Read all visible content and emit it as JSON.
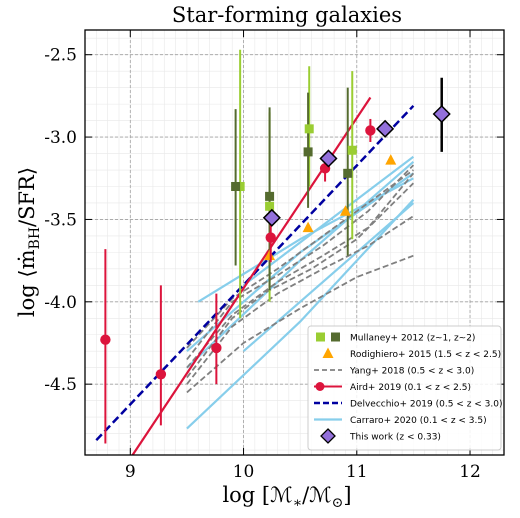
{
  "chart_data": {
    "type": "scatter",
    "title": "Star-forming galaxies",
    "xlabel": "log [ℳ*/ℳ⊙]",
    "ylabel": "log ⟨ṁBH/SFR⟩",
    "xlim": [
      8.6,
      12.3
    ],
    "ylim": [
      -4.93,
      -2.35
    ],
    "xticks": [
      9,
      10,
      11,
      12
    ],
    "yticks": [
      -2.5,
      -3.0,
      -3.5,
      -4.0,
      -4.5
    ],
    "ytick_labels": [
      "-2.5",
      "-3.0",
      "-3.5",
      "-4.0",
      "-4.5"
    ],
    "xtick_labels": [
      "9",
      "10",
      "11",
      "12"
    ],
    "grid": true,
    "legend_position": "lower-right",
    "series": [
      {
        "name": "Mullaney+ 2012 (z∼1, z∼2)",
        "marker": "square",
        "colors": [
          "#9acd32",
          "#556b2f"
        ],
        "points_z1": [
          {
            "x": 9.97,
            "y": -3.3,
            "ylo": -4.1,
            "yhi": -2.47
          },
          {
            "x": 10.23,
            "y": -3.42,
            "ylo": -4.0,
            "yhi": -2.85
          },
          {
            "x": 10.58,
            "y": -2.95,
            "ylo": -3.3,
            "yhi": -2.57
          },
          {
            "x": 10.96,
            "y": -3.08,
            "ylo": -3.62,
            "yhi": -2.6
          }
        ],
        "points_z2": [
          {
            "x": 9.93,
            "y": -3.3,
            "ylo": -3.78,
            "yhi": -2.83
          },
          {
            "x": 10.23,
            "y": -3.36,
            "ylo": -3.93,
            "yhi": -2.82
          },
          {
            "x": 10.57,
            "y": -3.09,
            "ylo": -3.43,
            "yhi": -2.73
          },
          {
            "x": 10.92,
            "y": -3.22,
            "ylo": -3.72,
            "yhi": -2.7
          }
        ]
      },
      {
        "name": "Rodighiero+ 2015 (1.5 < z < 2.5)",
        "marker": "triangle",
        "color": "#ffa500",
        "points": [
          {
            "x": 10.23,
            "y": -3.72
          },
          {
            "x": 10.57,
            "y": -3.55
          },
          {
            "x": 10.9,
            "y": -3.45
          },
          {
            "x": 11.3,
            "y": -3.14
          }
        ]
      },
      {
        "name": "Yang+ 2018 (0.5 < z < 3.0)",
        "line": "dashed",
        "color": "#808080",
        "lines": [
          [
            [
              9.5,
              -4.46
            ],
            [
              9.9,
              -4.1
            ],
            [
              10.2,
              -3.94
            ],
            [
              10.6,
              -3.8
            ],
            [
              11.0,
              -3.62
            ],
            [
              11.5,
              -3.28
            ]
          ],
          [
            [
              9.5,
              -4.4
            ],
            [
              9.9,
              -4.08
            ],
            [
              10.3,
              -3.88
            ],
            [
              10.7,
              -3.72
            ],
            [
              11.1,
              -3.55
            ],
            [
              11.5,
              -3.22
            ]
          ],
          [
            [
              9.5,
              -4.5
            ],
            [
              9.9,
              -4.15
            ],
            [
              10.3,
              -3.95
            ],
            [
              10.7,
              -3.8
            ],
            [
              11.1,
              -3.66
            ],
            [
              11.5,
              -3.48
            ]
          ],
          [
            [
              9.5,
              -4.35
            ],
            [
              9.9,
              -4.0
            ],
            [
              10.3,
              -3.84
            ],
            [
              10.7,
              -3.66
            ],
            [
              11.1,
              -3.45
            ],
            [
              11.5,
              -3.17
            ]
          ],
          [
            [
              9.5,
              -4.55
            ],
            [
              10.0,
              -4.25
            ],
            [
              10.5,
              -4.04
            ],
            [
              11.0,
              -3.85
            ],
            [
              11.5,
              -3.72
            ]
          ],
          [
            [
              9.5,
              -4.28
            ],
            [
              9.9,
              -3.98
            ],
            [
              10.3,
              -3.8
            ],
            [
              10.7,
              -3.6
            ],
            [
              11.1,
              -3.4
            ],
            [
              11.5,
              -3.2
            ]
          ]
        ]
      },
      {
        "name": "Aird+ 2019 (0.1 < z < 2.5)",
        "marker": "circle",
        "line": "solid",
        "color": "#dc143c",
        "points": [
          {
            "x": 8.78,
            "y": -4.23,
            "ylo": -4.86,
            "yhi": -3.68
          },
          {
            "x": 9.27,
            "y": -4.44,
            "ylo": -4.75,
            "yhi": -3.9
          },
          {
            "x": 9.76,
            "y": -4.28,
            "ylo": -4.5,
            "yhi": -3.95
          },
          {
            "x": 10.24,
            "y": -3.61,
            "ylo": -3.76,
            "yhi": -3.46
          },
          {
            "x": 10.72,
            "y": -3.19,
            "ylo": -3.27,
            "yhi": -3.1
          },
          {
            "x": 11.12,
            "y": -2.96,
            "ylo": -3.03,
            "yhi": -2.89
          }
        ],
        "fit": [
          [
            9.02,
            -4.93
          ],
          [
            11.12,
            -2.76
          ]
        ]
      },
      {
        "name": "Delvecchio+ 2019 (0.5 < z < 3.0)",
        "line": "dashed",
        "color": "#0000a0",
        "fit": [
          [
            8.7,
            -4.84
          ],
          [
            11.5,
            -2.81
          ]
        ]
      },
      {
        "name": "Carraro+ 2020 (0.1 < z < 3.5)",
        "line": "solid",
        "color": "#87ceeb",
        "lines": [
          [
            [
              9.5,
              -4.77
            ],
            [
              10.5,
              -4.12
            ],
            [
              11.5,
              -3.38
            ]
          ],
          [
            [
              9.5,
              -4.4
            ],
            [
              10.5,
              -3.75
            ],
            [
              11.5,
              -3.15
            ]
          ],
          [
            [
              9.5,
              -4.3
            ],
            [
              10.5,
              -3.7
            ],
            [
              11.5,
              -3.22
            ]
          ],
          [
            [
              9.6,
              -4.0
            ],
            [
              10.5,
              -3.62
            ],
            [
              11.5,
              -3.25
            ]
          ],
          [
            [
              10.0,
              -4.3
            ],
            [
              11.5,
              -3.4
            ]
          ],
          [
            [
              10.0,
              -3.9
            ],
            [
              11.5,
              -3.12
            ]
          ]
        ]
      },
      {
        "name": "This work (z < 0.33)",
        "marker": "diamond",
        "color": "#9370db",
        "points": [
          {
            "x": 10.25,
            "y": -3.49,
            "ylo": -3.52,
            "yhi": -3.46
          },
          {
            "x": 10.75,
            "y": -3.13,
            "ylo": -3.16,
            "yhi": -3.1
          },
          {
            "x": 11.25,
            "y": -2.95,
            "ylo": -2.98,
            "yhi": -2.93
          },
          {
            "x": 11.75,
            "y": -2.86,
            "ylo": -3.09,
            "yhi": -2.64
          }
        ]
      }
    ],
    "legend": [
      {
        "label": "Mullaney+ 2012 (z∼1, z∼2)"
      },
      {
        "label": "Rodighiero+ 2015 (1.5 < z < 2.5)"
      },
      {
        "label": "Yang+ 2018 (0.5 < z < 3.0)"
      },
      {
        "label": "Aird+ 2019 (0.1 < z < 2.5)"
      },
      {
        "label": "Delvecchio+ 2019 (0.5 < z < 3.0)"
      },
      {
        "label": "Carraro+ 2020 (0.1 < z < 3.5)"
      },
      {
        "label": "This work (z < 0.33)"
      }
    ]
  }
}
